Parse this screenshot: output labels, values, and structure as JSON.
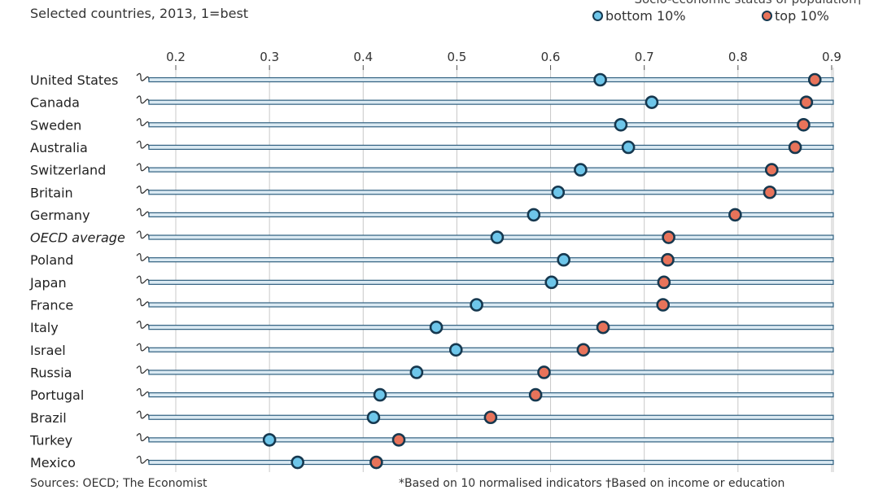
{
  "chart_data": {
    "type": "dot",
    "subtitle": "Selected countries, 2013, 1=best",
    "legend_header": "Socio-economic status of population†",
    "x_ticks": [
      0.2,
      0.3,
      0.4,
      0.5,
      0.6,
      0.7,
      0.8,
      0.9
    ],
    "xlim": [
      0.17,
      0.9
    ],
    "series": [
      {
        "name": "bottom 10%",
        "color": "#6ec6ea",
        "values": [
          0.653,
          0.708,
          0.675,
          0.683,
          0.632,
          0.608,
          0.582,
          0.543,
          0.614,
          0.601,
          0.521,
          0.478,
          0.499,
          0.457,
          0.418,
          0.411,
          0.3,
          0.33
        ]
      },
      {
        "name": "top 10%",
        "color": "#e8735a",
        "values": [
          0.882,
          0.873,
          0.87,
          0.861,
          0.836,
          0.834,
          0.797,
          0.726,
          0.725,
          0.721,
          0.72,
          0.656,
          0.635,
          0.593,
          0.584,
          0.536,
          0.438,
          0.414
        ]
      }
    ],
    "categories": [
      "United States",
      "Canada",
      "Sweden",
      "Australia",
      "Switzerland",
      "Britain",
      "Germany",
      "OECD average",
      "Poland",
      "Japan",
      "France",
      "Italy",
      "Israel",
      "Russia",
      "Portugal",
      "Brazil",
      "Turkey",
      "Mexico"
    ],
    "italic_categories": [
      "OECD average"
    ]
  },
  "footer": {
    "source": "Sources: OECD; The Economist",
    "notes": "*Based on 10 normalised indicators    †Based on income or education"
  },
  "colors": {
    "line": "#2f5f7f",
    "marker_border": "#16384f",
    "grid": "#c8c8c8"
  }
}
